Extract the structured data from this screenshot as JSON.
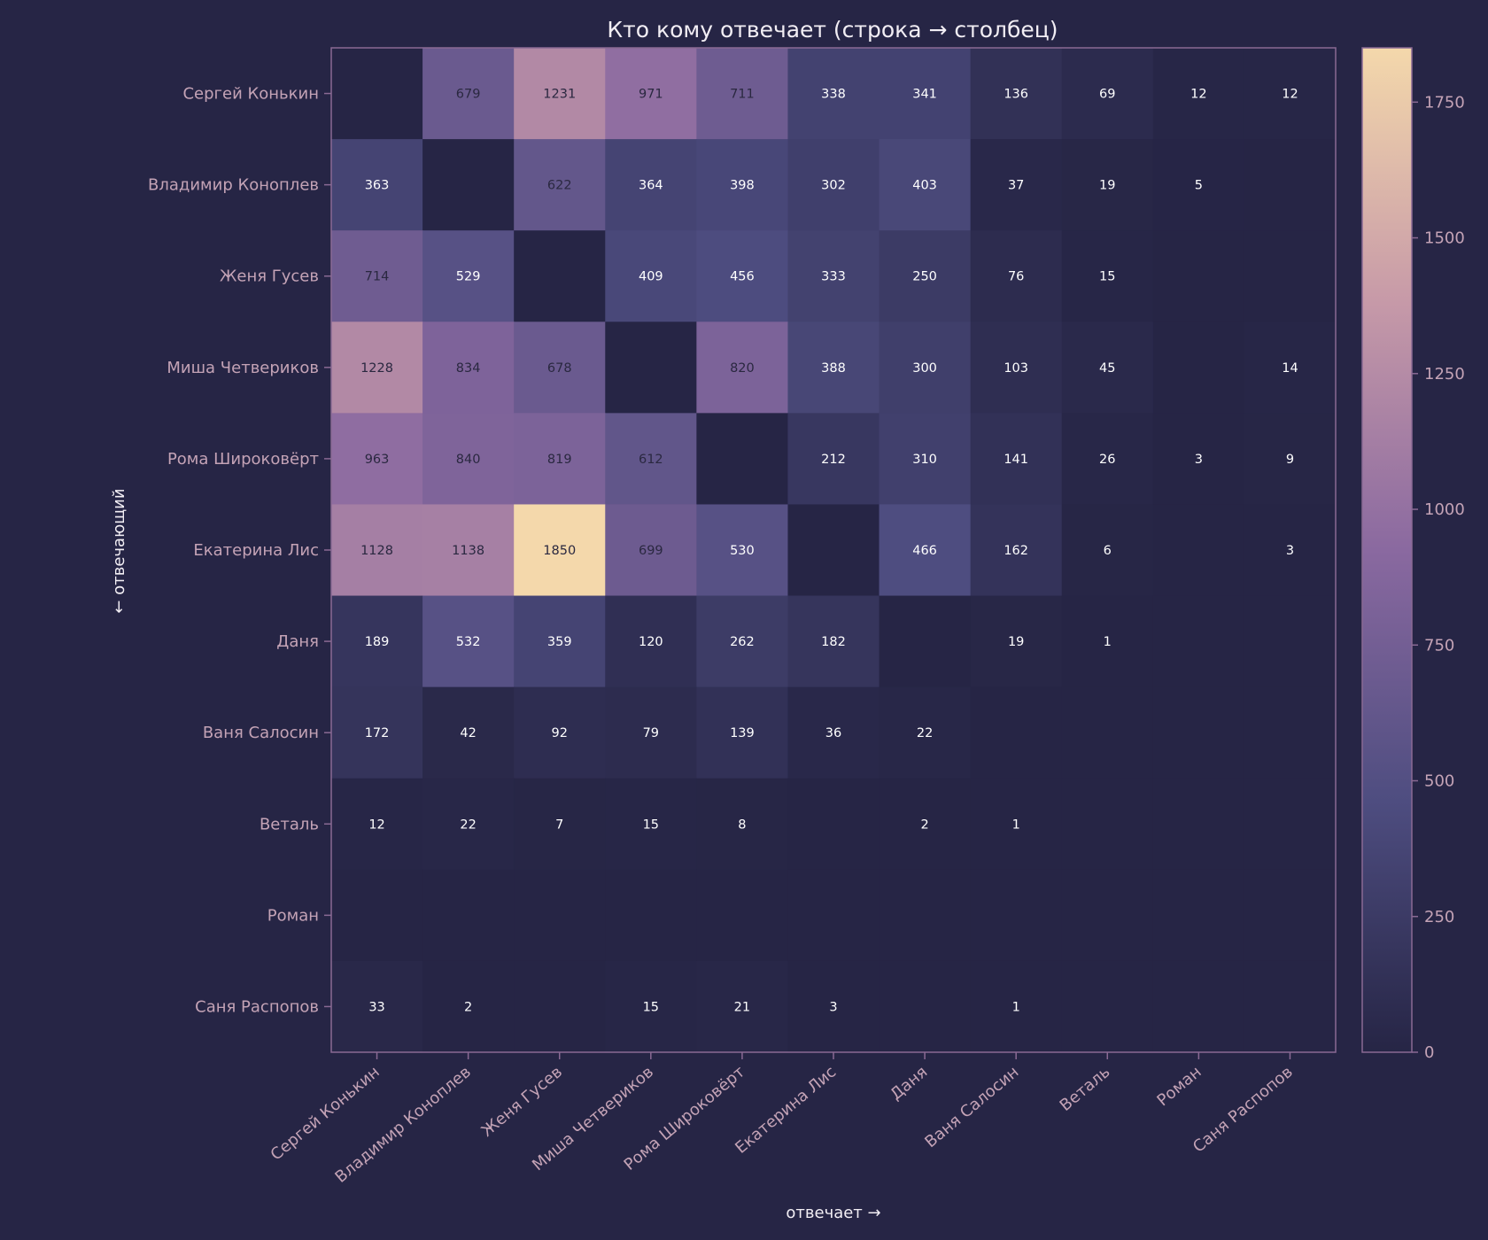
{
  "chart_data": {
    "type": "heatmap",
    "title": "Кто кому отвечает (строка → столбец)",
    "xlabel": "отвечает →",
    "ylabel": "← отвечающий",
    "x_categories": [
      "Сергей Конькин",
      "Владимир Коноплев",
      "Женя Гусев",
      "Миша Четвериков",
      "Рома Широковёрт",
      "Екатерина Лис",
      "Даня",
      "Ваня Салосин",
      "Веталь",
      "Роман",
      "Саня Распопов"
    ],
    "y_categories": [
      "Сергей Конькин",
      "Владимир Коноплев",
      "Женя Гусев",
      "Миша Четвериков",
      "Рома Широковёрт",
      "Екатерина Лис",
      "Даня",
      "Ваня Салосин",
      "Веталь",
      "Роман",
      "Саня Распопов"
    ],
    "values": [
      [
        null,
        679,
        1231,
        971,
        711,
        338,
        341,
        136,
        69,
        12,
        12
      ],
      [
        363,
        null,
        622,
        364,
        398,
        302,
        403,
        37,
        19,
        5,
        null
      ],
      [
        714,
        529,
        null,
        409,
        456,
        333,
        250,
        76,
        15,
        null,
        null
      ],
      [
        1228,
        834,
        678,
        null,
        820,
        388,
        300,
        103,
        45,
        null,
        14
      ],
      [
        963,
        840,
        819,
        612,
        null,
        212,
        310,
        141,
        26,
        3,
        9
      ],
      [
        1128,
        1138,
        1850,
        699,
        530,
        null,
        466,
        162,
        6,
        null,
        3
      ],
      [
        189,
        532,
        359,
        120,
        262,
        182,
        null,
        19,
        1,
        null,
        null
      ],
      [
        172,
        42,
        92,
        79,
        139,
        36,
        22,
        null,
        null,
        null,
        null
      ],
      [
        12,
        22,
        7,
        15,
        8,
        null,
        2,
        1,
        null,
        null,
        null
      ],
      [
        null,
        null,
        null,
        null,
        null,
        null,
        null,
        null,
        null,
        null,
        null
      ],
      [
        33,
        2,
        null,
        15,
        21,
        3,
        null,
        1,
        null,
        null,
        null
      ]
    ],
    "colorbar": {
      "range": [
        0,
        1850
      ],
      "ticks": [
        0,
        250,
        500,
        750,
        1000,
        1250,
        1500,
        1750
      ],
      "colors": [
        "#262545",
        "#4e4d80",
        "#8a69a0",
        "#c79aa8",
        "#f4d8ab"
      ]
    },
    "grid": false
  },
  "colors": {
    "background": "#262545",
    "frame": "#8a6a94",
    "text": "#f2eef4",
    "tick_text": "#c4a3b6",
    "cell_text_light": "#ffffff",
    "cell_text_dark": "#2a2840"
  }
}
